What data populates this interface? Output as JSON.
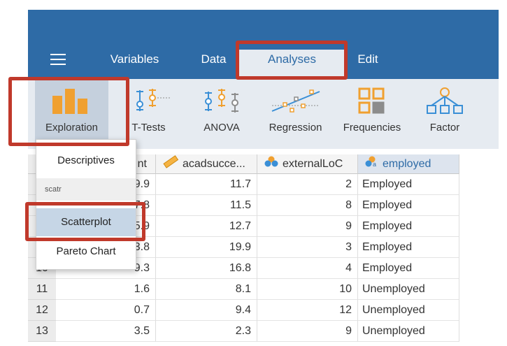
{
  "topbar": {
    "tabs": [
      {
        "label": "Variables"
      },
      {
        "label": "Data"
      },
      {
        "label": "Analyses"
      },
      {
        "label": "Edit"
      }
    ],
    "active_tab": "Analyses"
  },
  "toolbar": {
    "items": [
      {
        "label": "Exploration",
        "icon": "bar-chart-icon"
      },
      {
        "label": "T-Tests",
        "icon": "ttest-icon"
      },
      {
        "label": "ANOVA",
        "icon": "anova-icon"
      },
      {
        "label": "Regression",
        "icon": "regression-icon"
      },
      {
        "label": "Frequencies",
        "icon": "frequencies-icon"
      },
      {
        "label": "Factor",
        "icon": "factor-icon"
      }
    ]
  },
  "dropdown": {
    "items": [
      {
        "label": "Descriptives"
      },
      {
        "label": "Scatterplot"
      },
      {
        "label": "Pareto Chart"
      }
    ],
    "section_label": "scatr",
    "hovered": "Scatterplot"
  },
  "grid": {
    "columns": [
      {
        "label": "nt"
      },
      {
        "label": "acadsucce..."
      },
      {
        "label": "externalLoC"
      },
      {
        "label": "employed"
      }
    ],
    "selected_column": "employed",
    "rows": [
      {
        "row": "",
        "c1": "9.9",
        "c2": "11.7",
        "c3": "2",
        "c4": "Employed"
      },
      {
        "row": "",
        "c1": "7.8",
        "c2": "11.5",
        "c3": "8",
        "c4": "Employed"
      },
      {
        "row": "",
        "c1": "5.9",
        "c2": "12.7",
        "c3": "9",
        "c4": "Employed"
      },
      {
        "row": "",
        "c1": "3.8",
        "c2": "19.9",
        "c3": "3",
        "c4": "Employed"
      },
      {
        "row": "10",
        "c1": "9.3",
        "c2": "16.8",
        "c3": "4",
        "c4": "Employed"
      },
      {
        "row": "11",
        "c1": "1.6",
        "c2": "8.1",
        "c3": "10",
        "c4": "Unemployed"
      },
      {
        "row": "12",
        "c1": "0.7",
        "c2": "9.4",
        "c3": "12",
        "c4": "Unemployed"
      },
      {
        "row": "13",
        "c1": "3.5",
        "c2": "2.3",
        "c3": "9",
        "c4": "Unemployed"
      }
    ]
  },
  "colors": {
    "topbar": "#2e6ba6",
    "toolbar": "#e6ebf1",
    "icon_orange": "#f0a030",
    "icon_gray": "#8c8c8c",
    "icon_blue": "#3a8fd6",
    "highlight": "#c0392b"
  }
}
